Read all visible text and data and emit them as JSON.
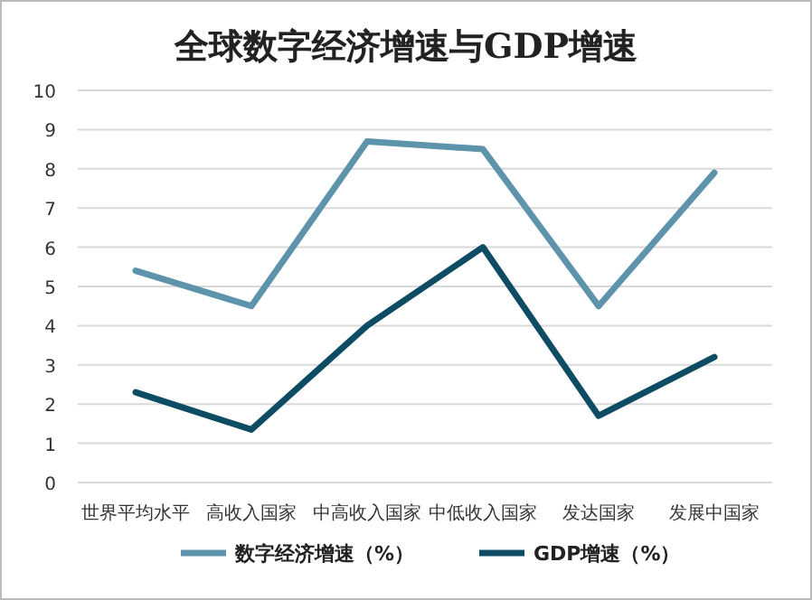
{
  "chart_data": {
    "type": "line",
    "title": "全球数字经济增速与GDP增速",
    "categories": [
      "世界平均水平",
      "高收入国家",
      "中高收入国家",
      "中低收入国家",
      "发达国家",
      "发展中国家"
    ],
    "series": [
      {
        "name": "数字经济增速（%）",
        "color": "#5e93ac",
        "values": [
          5.4,
          4.5,
          8.7,
          8.5,
          4.5,
          7.9
        ]
      },
      {
        "name": "GDP增速（%）",
        "color": "#0d4c63",
        "values": [
          2.3,
          1.35,
          4.0,
          6.0,
          1.7,
          3.2
        ]
      }
    ],
    "ylim": [
      0,
      10
    ],
    "yticks": [
      0,
      1,
      2,
      3,
      4,
      5,
      6,
      7,
      8,
      9,
      10
    ],
    "grid": "y",
    "legend": "bottom",
    "marker": "none",
    "line_style": "solid"
  }
}
